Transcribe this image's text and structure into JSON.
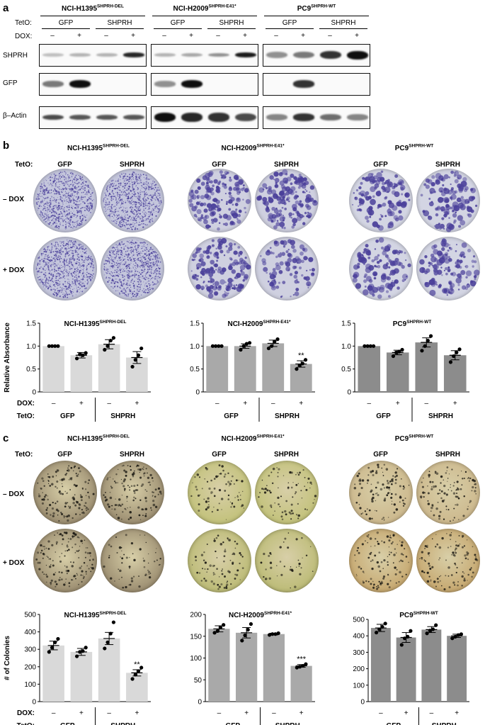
{
  "panel_a": {
    "letter": "a",
    "groups": [
      {
        "cell": "NCI-H1395",
        "sup": "SHPRH-DEL"
      },
      {
        "cell": "NCI-H2009",
        "sup": "SHPRH-E41*"
      },
      {
        "cell": "PC9",
        "sup": "SHPRH-WT"
      }
    ],
    "teto_label": "TetO:",
    "dox_label": "DOX:",
    "teto_values": [
      "GFP",
      "SHPRH"
    ],
    "dox_values": [
      "–",
      "+"
    ],
    "blot_labels": [
      "SHPRH",
      "GFP",
      "β–Actin"
    ]
  },
  "panel_b": {
    "letter": "b",
    "groups": [
      {
        "cell": "NCI-H1395",
        "sup": "SHPRH-DEL"
      },
      {
        "cell": "NCI-H2009",
        "sup": "SHPRH-E41*"
      },
      {
        "cell": "PC9",
        "sup": "SHPRH-WT"
      }
    ],
    "teto_label": "TetO:",
    "teto_values": [
      "GFP",
      "SHPRH"
    ],
    "row_labels": [
      "– DOX",
      "+ DOX"
    ]
  },
  "panel_c": {
    "letter": "c",
    "groups": [
      {
        "cell": "NCI-H1395",
        "sup": "SHPRH-DEL"
      },
      {
        "cell": "NCI-H2009",
        "sup": "SHPRH-E41*"
      },
      {
        "cell": "PC9",
        "sup": "SHPRH-WT"
      }
    ],
    "teto_label": "TetO:",
    "teto_values": [
      "GFP",
      "SHPRH"
    ],
    "row_labels": [
      "– DOX",
      "+ DOX"
    ]
  },
  "bottom_labels": {
    "dox_label": "DOX:",
    "teto_label": "TetO:",
    "dox_values": [
      "–",
      "+",
      "–",
      "+"
    ],
    "teto_values": [
      "GFP",
      "SHPRH"
    ]
  },
  "chart_data": [
    {
      "type": "bar",
      "panel": "b",
      "title": "NCI-H1395",
      "title_sup": "SHPRH-DEL",
      "ylabel": "Relative Absorbance",
      "ylim": [
        0,
        1.5
      ],
      "yticks": [
        "0",
        "0.5",
        "1.0",
        "1.5"
      ],
      "categories": [
        "GFP –",
        "GFP +",
        "SHPRH –",
        "SHPRH +"
      ],
      "values": [
        1.0,
        0.8,
        1.04,
        0.75
      ],
      "errors": [
        0,
        0.06,
        0.1,
        0.13
      ],
      "points": [
        [
          1,
          1,
          1,
          1
        ],
        [
          0.73,
          0.82,
          0.8,
          0.85
        ],
        [
          0.92,
          1.0,
          1.12,
          1.18
        ],
        [
          0.55,
          0.7,
          0.8,
          0.95
        ]
      ],
      "annotations": [
        "",
        "",
        "",
        ""
      ],
      "bar_color": "#d9d9d9"
    },
    {
      "type": "bar",
      "panel": "b",
      "title": "NCI-H2009",
      "title_sup": "SHPRH-E41*",
      "ylabel": "",
      "ylim": [
        0,
        1.5
      ],
      "yticks": [
        "0",
        "0.5",
        "1.0",
        "1.5"
      ],
      "categories": [
        "GFP –",
        "GFP +",
        "SHPRH –",
        "SHPRH +"
      ],
      "values": [
        1.0,
        1.0,
        1.06,
        0.61
      ],
      "errors": [
        0,
        0.05,
        0.07,
        0.07
      ],
      "points": [
        [
          1,
          1,
          1,
          1
        ],
        [
          0.92,
          1.0,
          1.05,
          1.07
        ],
        [
          0.95,
          1.0,
          1.1,
          1.15
        ],
        [
          0.5,
          0.58,
          0.62,
          0.7
        ]
      ],
      "annotations": [
        "",
        "",
        "",
        "**"
      ],
      "bar_color": "#a9a9a9"
    },
    {
      "type": "bar",
      "panel": "b",
      "title": "PC9",
      "title_sup": "SHPRH-WT",
      "ylabel": "",
      "ylim": [
        0,
        1.5
      ],
      "yticks": [
        "0",
        "0.5",
        "1.0",
        "1.5"
      ],
      "categories": [
        "GFP –",
        "GFP +",
        "SHPRH –",
        "SHPRH +"
      ],
      "values": [
        1.0,
        0.86,
        1.08,
        0.8
      ],
      "errors": [
        0,
        0.05,
        0.1,
        0.1
      ],
      "points": [
        [
          1,
          1,
          1,
          1
        ],
        [
          0.78,
          0.86,
          0.88,
          0.92
        ],
        [
          0.9,
          1.0,
          1.12,
          1.22
        ],
        [
          0.65,
          0.78,
          0.86,
          0.93
        ]
      ],
      "annotations": [
        "",
        "",
        "",
        ""
      ],
      "bar_color": "#8c8c8c"
    },
    {
      "type": "bar",
      "panel": "c",
      "title": "NCI-H1395",
      "title_sup": "SHPRH-DEL",
      "ylabel": "# of Colonies",
      "ylim": [
        0,
        500
      ],
      "yticks": [
        "0",
        "100",
        "200",
        "300",
        "400",
        "500"
      ],
      "categories": [
        "GFP –",
        "GFP +",
        "SHPRH –",
        "SHPRH +"
      ],
      "values": [
        322,
        285,
        362,
        165
      ],
      "errors": [
        25,
        20,
        35,
        18
      ],
      "points": [
        [
          285,
          310,
          340,
          360
        ],
        [
          260,
          285,
          290,
          310
        ],
        [
          305,
          340,
          390,
          455
        ],
        [
          130,
          155,
          175,
          195
        ]
      ],
      "annotations": [
        "",
        "",
        "",
        "**"
      ],
      "bar_color": "#d9d9d9"
    },
    {
      "type": "bar",
      "panel": "c",
      "title": "NCI-H2009",
      "title_sup": "SHPRH-E41*",
      "ylabel": "",
      "ylim": [
        0,
        200
      ],
      "yticks": [
        "0",
        "50",
        "100",
        "150",
        "200"
      ],
      "categories": [
        "GFP –",
        "GFP +",
        "SHPRH –",
        "SHPRH +"
      ],
      "values": [
        167,
        158,
        155,
        82
      ],
      "errors": [
        7,
        12,
        2,
        3
      ],
      "points": [
        [
          158,
          162,
          170,
          176
        ],
        [
          140,
          152,
          165,
          178
        ],
        [
          153,
          155,
          155,
          157
        ],
        [
          78,
          80,
          82,
          86
        ]
      ],
      "annotations": [
        "",
        "",
        "",
        "***"
      ],
      "bar_color": "#a9a9a9"
    },
    {
      "type": "bar",
      "panel": "c",
      "title": "PC9",
      "title_sup": "SHPRH-WT",
      "ylabel": "",
      "ylim": [
        0,
        500
      ],
      "yticks": [
        "0",
        "100",
        "200",
        "300",
        "400",
        "500"
      ],
      "categories": [
        "GFP –",
        "GFP +",
        "SHPRH –",
        "SHPRH +"
      ],
      "values": [
        448,
        390,
        438,
        400
      ],
      "errors": [
        22,
        30,
        18,
        10
      ],
      "points": [
        [
          420,
          440,
          455,
          475
        ],
        [
          345,
          385,
          395,
          430
        ],
        [
          415,
          432,
          440,
          465
        ],
        [
          385,
          395,
          405,
          410
        ]
      ],
      "annotations": [
        "",
        "",
        "",
        ""
      ],
      "bar_color": "#8c8c8c"
    }
  ]
}
